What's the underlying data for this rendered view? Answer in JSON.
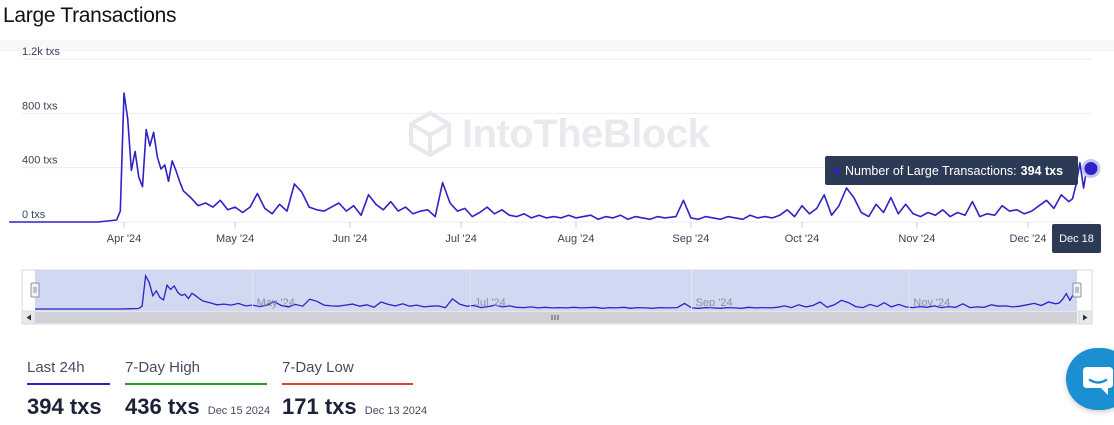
{
  "page": {
    "title": "Large Transactions"
  },
  "watermark": {
    "text": "IntoTheBlock"
  },
  "tooltip": {
    "label": "Number of Large Transactions:",
    "value": "394 txs",
    "date": "Dec 18"
  },
  "navigator": {
    "labels": [
      "May '24",
      "Jul '24",
      "Sep '24",
      "Nov '24"
    ]
  },
  "stats": [
    {
      "label": "Last 24h",
      "value": "394 txs",
      "date": "",
      "color": "#2f22c8"
    },
    {
      "label": "7-Day High",
      "value": "436 txs",
      "date": "Dec 15 2024",
      "color": "#2a9d2a"
    },
    {
      "label": "7-Day Low",
      "value": "171 txs",
      "date": "Dec 13 2024",
      "color": "#d1492f"
    }
  ],
  "colors": {
    "series": "#2f22c8",
    "navigator_fill": "#ccd4ef",
    "grid": "#ebedf2"
  },
  "icons": {
    "chat": "chat-bubble-icon",
    "watermark_logo": "cube-logo-icon"
  },
  "chart_data": {
    "type": "line",
    "title": "",
    "xlabel": "",
    "ylabel": "",
    "ylim": [
      0,
      1200
    ],
    "y_ticks": [
      "0 txs",
      "400 txs",
      "800 txs",
      "1.2k txs"
    ],
    "x_ticks": [
      "Apr '24",
      "May '24",
      "Jun '24",
      "Jul '24",
      "Aug '24",
      "Sep '24",
      "Oct '24",
      "Nov '24",
      "Dec '24"
    ],
    "series": [
      {
        "name": "Number of Large Transactions",
        "points": [
          [
            "2024-03-01",
            0
          ],
          [
            "2024-03-25",
            0
          ],
          [
            "2024-03-30",
            15
          ],
          [
            "2024-03-31",
            80
          ],
          [
            "2024-04-01",
            950
          ],
          [
            "2024-04-02",
            760
          ],
          [
            "2024-04-03",
            380
          ],
          [
            "2024-04-04",
            520
          ],
          [
            "2024-04-05",
            330
          ],
          [
            "2024-04-06",
            260
          ],
          [
            "2024-04-07",
            680
          ],
          [
            "2024-04-08",
            560
          ],
          [
            "2024-04-09",
            660
          ],
          [
            "2024-04-10",
            480
          ],
          [
            "2024-04-11",
            390
          ],
          [
            "2024-04-12",
            420
          ],
          [
            "2024-04-13",
            300
          ],
          [
            "2024-04-14",
            450
          ],
          [
            "2024-04-15",
            380
          ],
          [
            "2024-04-16",
            300
          ],
          [
            "2024-04-17",
            230
          ],
          [
            "2024-04-19",
            180
          ],
          [
            "2024-04-21",
            120
          ],
          [
            "2024-04-23",
            140
          ],
          [
            "2024-04-25",
            110
          ],
          [
            "2024-04-27",
            160
          ],
          [
            "2024-04-29",
            90
          ],
          [
            "2024-05-01",
            110
          ],
          [
            "2024-05-03",
            70
          ],
          [
            "2024-05-05",
            110
          ],
          [
            "2024-05-07",
            210
          ],
          [
            "2024-05-09",
            100
          ],
          [
            "2024-05-11",
            60
          ],
          [
            "2024-05-13",
            130
          ],
          [
            "2024-05-15",
            80
          ],
          [
            "2024-05-17",
            280
          ],
          [
            "2024-05-19",
            220
          ],
          [
            "2024-05-21",
            110
          ],
          [
            "2024-05-23",
            90
          ],
          [
            "2024-05-25",
            80
          ],
          [
            "2024-05-27",
            110
          ],
          [
            "2024-05-29",
            140
          ],
          [
            "2024-05-31",
            80
          ],
          [
            "2024-06-02",
            120
          ],
          [
            "2024-06-04",
            50
          ],
          [
            "2024-06-06",
            200
          ],
          [
            "2024-06-08",
            130
          ],
          [
            "2024-06-10",
            90
          ],
          [
            "2024-06-12",
            150
          ],
          [
            "2024-06-14",
            80
          ],
          [
            "2024-06-16",
            110
          ],
          [
            "2024-06-18",
            60
          ],
          [
            "2024-06-20",
            80
          ],
          [
            "2024-06-22",
            90
          ],
          [
            "2024-06-24",
            40
          ],
          [
            "2024-06-26",
            290
          ],
          [
            "2024-06-28",
            140
          ],
          [
            "2024-06-30",
            80
          ],
          [
            "2024-07-02",
            100
          ],
          [
            "2024-07-04",
            40
          ],
          [
            "2024-07-06",
            70
          ],
          [
            "2024-07-08",
            110
          ],
          [
            "2024-07-10",
            60
          ],
          [
            "2024-07-12",
            90
          ],
          [
            "2024-07-14",
            50
          ],
          [
            "2024-07-16",
            40
          ],
          [
            "2024-07-18",
            60
          ],
          [
            "2024-07-20",
            30
          ],
          [
            "2024-07-22",
            50
          ],
          [
            "2024-07-24",
            30
          ],
          [
            "2024-07-26",
            40
          ],
          [
            "2024-07-28",
            30
          ],
          [
            "2024-07-30",
            50
          ],
          [
            "2024-08-01",
            30
          ],
          [
            "2024-08-03",
            40
          ],
          [
            "2024-08-05",
            50
          ],
          [
            "2024-08-07",
            20
          ],
          [
            "2024-08-09",
            40
          ],
          [
            "2024-08-11",
            30
          ],
          [
            "2024-08-13",
            50
          ],
          [
            "2024-08-15",
            20
          ],
          [
            "2024-08-17",
            40
          ],
          [
            "2024-08-19",
            30
          ],
          [
            "2024-08-21",
            20
          ],
          [
            "2024-08-23",
            40
          ],
          [
            "2024-08-25",
            30
          ],
          [
            "2024-08-28",
            40
          ],
          [
            "2024-08-30",
            160
          ],
          [
            "2024-09-01",
            30
          ],
          [
            "2024-09-03",
            20
          ],
          [
            "2024-09-05",
            40
          ],
          [
            "2024-09-07",
            30
          ],
          [
            "2024-09-09",
            20
          ],
          [
            "2024-09-11",
            40
          ],
          [
            "2024-09-13",
            30
          ],
          [
            "2024-09-15",
            20
          ],
          [
            "2024-09-17",
            50
          ],
          [
            "2024-09-19",
            30
          ],
          [
            "2024-09-21",
            40
          ],
          [
            "2024-09-23",
            30
          ],
          [
            "2024-09-25",
            50
          ],
          [
            "2024-09-27",
            90
          ],
          [
            "2024-09-29",
            40
          ],
          [
            "2024-10-01",
            120
          ],
          [
            "2024-10-03",
            60
          ],
          [
            "2024-10-05",
            100
          ],
          [
            "2024-10-07",
            200
          ],
          [
            "2024-10-09",
            50
          ],
          [
            "2024-10-11",
            120
          ],
          [
            "2024-10-13",
            250
          ],
          [
            "2024-10-15",
            180
          ],
          [
            "2024-10-17",
            70
          ],
          [
            "2024-10-19",
            40
          ],
          [
            "2024-10-21",
            130
          ],
          [
            "2024-10-23",
            70
          ],
          [
            "2024-10-25",
            180
          ],
          [
            "2024-10-27",
            60
          ],
          [
            "2024-10-29",
            130
          ],
          [
            "2024-10-31",
            60
          ],
          [
            "2024-11-02",
            40
          ],
          [
            "2024-11-04",
            70
          ],
          [
            "2024-11-06",
            50
          ],
          [
            "2024-11-08",
            90
          ],
          [
            "2024-11-10",
            40
          ],
          [
            "2024-11-12",
            70
          ],
          [
            "2024-11-14",
            50
          ],
          [
            "2024-11-16",
            150
          ],
          [
            "2024-11-18",
            40
          ],
          [
            "2024-11-20",
            60
          ],
          [
            "2024-11-22",
            50
          ],
          [
            "2024-11-24",
            120
          ],
          [
            "2024-11-26",
            80
          ],
          [
            "2024-11-28",
            90
          ],
          [
            "2024-11-30",
            60
          ],
          [
            "2024-12-02",
            80
          ],
          [
            "2024-12-04",
            120
          ],
          [
            "2024-12-06",
            160
          ],
          [
            "2024-12-08",
            100
          ],
          [
            "2024-12-10",
            200
          ],
          [
            "2024-12-12",
            150
          ],
          [
            "2024-12-13",
            171
          ],
          [
            "2024-12-14",
            280
          ],
          [
            "2024-12-15",
            436
          ],
          [
            "2024-12-16",
            250
          ],
          [
            "2024-12-17",
            420
          ],
          [
            "2024-12-18",
            394
          ]
        ]
      }
    ],
    "highlight": {
      "date": "Dec 18",
      "value": 394
    }
  }
}
